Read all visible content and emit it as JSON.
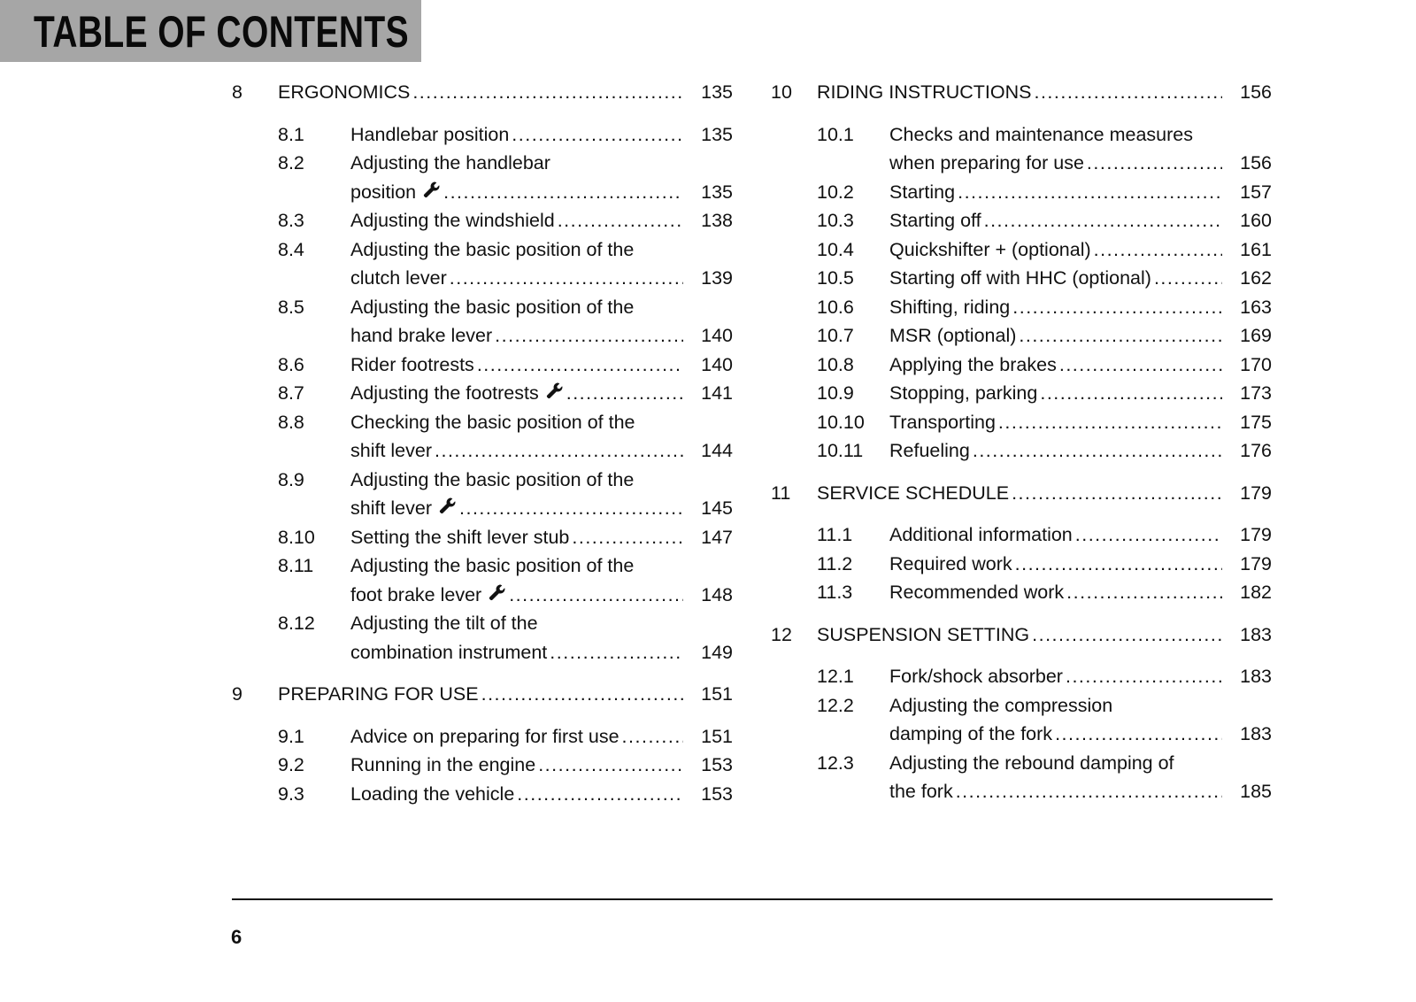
{
  "header": {
    "title": "TABLE OF CONTENTS"
  },
  "columns": [
    [
      {
        "type": "chapter",
        "num": "8",
        "lines": [
          "ERGONOMICS"
        ],
        "page": "135"
      },
      {
        "type": "sub",
        "num": "8.1",
        "lines": [
          "Handlebar position"
        ],
        "page": "135"
      },
      {
        "type": "sub",
        "num": "8.2",
        "lines": [
          "Adjusting the handlebar",
          "position"
        ],
        "page": "135",
        "wrench": true
      },
      {
        "type": "sub",
        "num": "8.3",
        "lines": [
          "Adjusting the windshield"
        ],
        "page": "138"
      },
      {
        "type": "sub",
        "num": "8.4",
        "lines": [
          "Adjusting the basic position of the",
          "clutch lever"
        ],
        "page": "139"
      },
      {
        "type": "sub",
        "num": "8.5",
        "lines": [
          "Adjusting the basic position of the",
          "hand brake lever"
        ],
        "page": "140"
      },
      {
        "type": "sub",
        "num": "8.6",
        "lines": [
          "Rider footrests"
        ],
        "page": "140"
      },
      {
        "type": "sub",
        "num": "8.7",
        "lines": [
          "Adjusting the footrests"
        ],
        "page": "141",
        "wrench": true
      },
      {
        "type": "sub",
        "num": "8.8",
        "lines": [
          "Checking the basic position of the",
          "shift lever"
        ],
        "page": "144"
      },
      {
        "type": "sub",
        "num": "8.9",
        "lines": [
          "Adjusting the basic position of the",
          "shift lever"
        ],
        "page": "145",
        "wrench": true
      },
      {
        "type": "sub",
        "num": "8.10",
        "lines": [
          "Setting the shift lever stub"
        ],
        "page": "147"
      },
      {
        "type": "sub",
        "num": "8.11",
        "lines": [
          "Adjusting the basic position of the",
          "foot brake lever"
        ],
        "page": "148",
        "wrench": true
      },
      {
        "type": "sub",
        "num": "8.12",
        "lines": [
          "Adjusting the tilt of the",
          "combination instrument"
        ],
        "page": "149"
      },
      {
        "type": "chapter",
        "num": "9",
        "lines": [
          "PREPARING FOR USE"
        ],
        "page": "151"
      },
      {
        "type": "sub",
        "num": "9.1",
        "lines": [
          "Advice on preparing for first use"
        ],
        "page": "151"
      },
      {
        "type": "sub",
        "num": "9.2",
        "lines": [
          "Running in the engine"
        ],
        "page": "153"
      },
      {
        "type": "sub",
        "num": "9.3",
        "lines": [
          "Loading the vehicle"
        ],
        "page": "153"
      }
    ],
    [
      {
        "type": "chapter",
        "num": "10",
        "lines": [
          "RIDING INSTRUCTIONS"
        ],
        "page": "156"
      },
      {
        "type": "sub",
        "num": "10.1",
        "lines": [
          "Checks and maintenance measures",
          "when preparing for use"
        ],
        "page": "156"
      },
      {
        "type": "sub",
        "num": "10.2",
        "lines": [
          "Starting"
        ],
        "page": "157"
      },
      {
        "type": "sub",
        "num": "10.3",
        "lines": [
          "Starting off"
        ],
        "page": "160"
      },
      {
        "type": "sub",
        "num": "10.4",
        "lines": [
          "Quickshifter + (optional)"
        ],
        "page": "161"
      },
      {
        "type": "sub",
        "num": "10.5",
        "lines": [
          "Starting off with HHC (optional)"
        ],
        "page": "162"
      },
      {
        "type": "sub",
        "num": "10.6",
        "lines": [
          "Shifting, riding"
        ],
        "page": "163"
      },
      {
        "type": "sub",
        "num": "10.7",
        "lines": [
          "MSR (optional)"
        ],
        "page": "169"
      },
      {
        "type": "sub",
        "num": "10.8",
        "lines": [
          "Applying the brakes"
        ],
        "page": "170"
      },
      {
        "type": "sub",
        "num": "10.9",
        "lines": [
          "Stopping, parking"
        ],
        "page": "173"
      },
      {
        "type": "sub",
        "num": "10.10",
        "lines": [
          "Transporting"
        ],
        "page": "175"
      },
      {
        "type": "sub",
        "num": "10.11",
        "lines": [
          "Refueling"
        ],
        "page": "176"
      },
      {
        "type": "chapter",
        "num": "11",
        "lines": [
          "SERVICE SCHEDULE"
        ],
        "page": "179"
      },
      {
        "type": "sub",
        "num": "11.1",
        "lines": [
          "Additional information"
        ],
        "page": "179"
      },
      {
        "type": "sub",
        "num": "11.2",
        "lines": [
          "Required work"
        ],
        "page": "179"
      },
      {
        "type": "sub",
        "num": "11.3",
        "lines": [
          "Recommended work"
        ],
        "page": "182"
      },
      {
        "type": "chapter",
        "num": "12",
        "lines": [
          "SUSPENSION SETTING"
        ],
        "page": "183"
      },
      {
        "type": "sub",
        "num": "12.1",
        "lines": [
          "Fork/shock absorber"
        ],
        "page": "183"
      },
      {
        "type": "sub",
        "num": "12.2",
        "lines": [
          "Adjusting the compression",
          "damping of the fork"
        ],
        "page": "183"
      },
      {
        "type": "sub",
        "num": "12.3",
        "lines": [
          "Adjusting the rebound damping of",
          "the fork"
        ],
        "page": "185"
      }
    ]
  ],
  "footer": {
    "page_number": "6"
  }
}
